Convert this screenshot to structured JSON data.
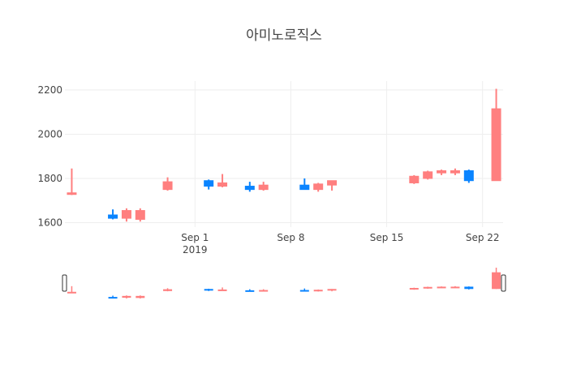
{
  "chart_data": {
    "type": "candlestick",
    "title": "아미노로직스",
    "xlabel": "",
    "ylabel": "",
    "ylim": [
      1580,
      2240
    ],
    "y_ticks": [
      1600,
      1800,
      2000,
      2200
    ],
    "x_range": [
      "2019-08-23",
      "2019-09-23"
    ],
    "x_ticks": [
      {
        "date": "2019-09-01",
        "label": "Sep 1",
        "sublabel": "2019"
      },
      {
        "date": "2019-09-08",
        "label": "Sep 8",
        "sublabel": ""
      },
      {
        "date": "2019-09-15",
        "label": "Sep 15",
        "sublabel": ""
      },
      {
        "date": "2019-09-22",
        "label": "Sep 22",
        "sublabel": ""
      }
    ],
    "grid": true,
    "legend": "none",
    "colors": {
      "increasing": "#ff7f7f",
      "decreasing": "#1f77b4",
      "decreasing_actual": "#0a84ff"
    },
    "series": [
      {
        "date": "2019-08-23",
        "open": 1730,
        "high": 1845,
        "low": 1725,
        "close": 1735
      },
      {
        "date": "2019-08-26",
        "open": 1635,
        "high": 1660,
        "low": 1615,
        "close": 1620
      },
      {
        "date": "2019-08-27",
        "open": 1620,
        "high": 1665,
        "low": 1605,
        "close": 1655
      },
      {
        "date": "2019-08-28",
        "open": 1615,
        "high": 1665,
        "low": 1605,
        "close": 1655
      },
      {
        "date": "2019-08-30",
        "open": 1750,
        "high": 1805,
        "low": 1745,
        "close": 1785
      },
      {
        "date": "2019-09-02",
        "open": 1790,
        "high": 1795,
        "low": 1750,
        "close": 1765
      },
      {
        "date": "2019-09-03",
        "open": 1765,
        "high": 1820,
        "low": 1760,
        "close": 1780
      },
      {
        "date": "2019-09-05",
        "open": 1765,
        "high": 1785,
        "low": 1740,
        "close": 1750
      },
      {
        "date": "2019-09-06",
        "open": 1750,
        "high": 1785,
        "low": 1745,
        "close": 1770
      },
      {
        "date": "2019-09-09",
        "open": 1770,
        "high": 1800,
        "low": 1750,
        "close": 1750
      },
      {
        "date": "2019-09-10",
        "open": 1750,
        "high": 1780,
        "low": 1740,
        "close": 1775
      },
      {
        "date": "2019-09-11",
        "open": 1770,
        "high": 1790,
        "low": 1745,
        "close": 1790
      },
      {
        "date": "2019-09-17",
        "open": 1780,
        "high": 1815,
        "low": 1775,
        "close": 1810
      },
      {
        "date": "2019-09-18",
        "open": 1800,
        "high": 1835,
        "low": 1795,
        "close": 1830
      },
      {
        "date": "2019-09-19",
        "open": 1825,
        "high": 1840,
        "low": 1815,
        "close": 1835
      },
      {
        "date": "2019-09-20",
        "open": 1825,
        "high": 1845,
        "low": 1815,
        "close": 1835
      },
      {
        "date": "2019-09-21",
        "open": 1835,
        "high": 1840,
        "low": 1780,
        "close": 1790
      },
      {
        "date": "2019-09-23",
        "open": 1790,
        "high": 2205,
        "low": 1790,
        "close": 2115
      }
    ],
    "rangeslider": true
  }
}
